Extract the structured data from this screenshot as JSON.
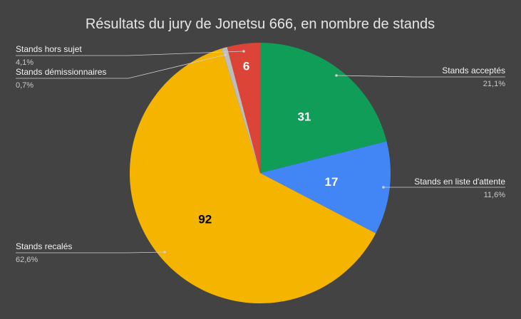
{
  "chart_data": {
    "type": "pie",
    "title": "Résultats du jury de Jonetsu 666, en nombre de stands",
    "slices": [
      {
        "label": "Stands acceptés",
        "value": 31,
        "percent": "21,1%",
        "color": "#0f9d58",
        "value_text_color": "#ffffff"
      },
      {
        "label": "Stands en liste d'attente",
        "value": 17,
        "percent": "11,6%",
        "color": "#4285f4",
        "value_text_color": "#ffffff"
      },
      {
        "label": "Stands recalés",
        "value": 92,
        "percent": "62,6%",
        "color": "#f4b400",
        "value_text_color": "#000000"
      },
      {
        "label": "Stands démissionnaires",
        "value": 1,
        "percent": "0,7%",
        "color": "#bdbdbd",
        "value_text_color": "#000000"
      },
      {
        "label": "Stands hors sujet",
        "value": 6,
        "percent": "4,1%",
        "color": "#db4437",
        "value_text_color": "#ffffff"
      }
    ],
    "start_angle": "top",
    "direction": "clockwise",
    "legend": "none",
    "background": "#434343"
  }
}
